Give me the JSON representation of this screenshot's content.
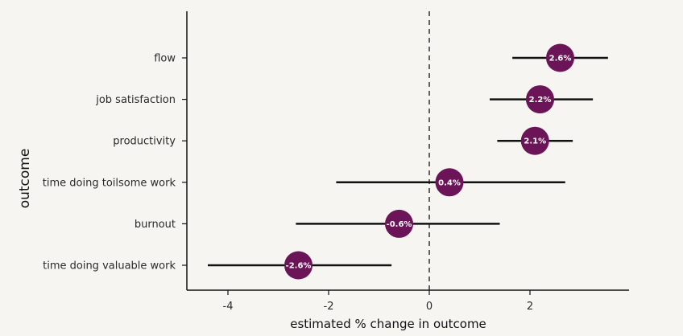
{
  "chart_data": {
    "type": "forest",
    "xlabel": "estimated % change in outcome",
    "ylabel": "outcome",
    "xlim": [
      -4.8,
      4.0
    ],
    "xticks": [
      {
        "value": -4,
        "label": "-4"
      },
      {
        "value": -2,
        "label": "-2"
      },
      {
        "value": 0,
        "label": "0"
      },
      {
        "value": 2,
        "label": "2"
      }
    ],
    "reference_line": 0,
    "grid": false,
    "categories": [
      "flow",
      "job satisfaction",
      "productivity",
      "time doing toilsome work",
      "burnout",
      "time doing valuable work"
    ],
    "points": [
      {
        "label": "flow",
        "estimate": 2.6,
        "lower": 1.65,
        "upper": 3.55,
        "text": "2.6%"
      },
      {
        "label": "job satisfaction",
        "estimate": 2.2,
        "lower": 1.2,
        "upper": 3.25,
        "text": "2.2%"
      },
      {
        "label": "productivity",
        "estimate": 2.1,
        "lower": 1.35,
        "upper": 2.85,
        "text": "2.1%"
      },
      {
        "label": "time doing toilsome work",
        "estimate": 0.4,
        "lower": -1.85,
        "upper": 2.7,
        "text": "0.4%"
      },
      {
        "label": "burnout",
        "estimate": -0.6,
        "lower": -2.65,
        "upper": 1.4,
        "text": "-0.6%"
      },
      {
        "label": "time doing valuable work",
        "estimate": -2.6,
        "lower": -4.4,
        "upper": -0.75,
        "text": "-2.6%"
      }
    ],
    "colors": {
      "point": "#6b1457",
      "interval": "#111111",
      "axis": "#111111",
      "background": "#f6f5f1"
    }
  }
}
